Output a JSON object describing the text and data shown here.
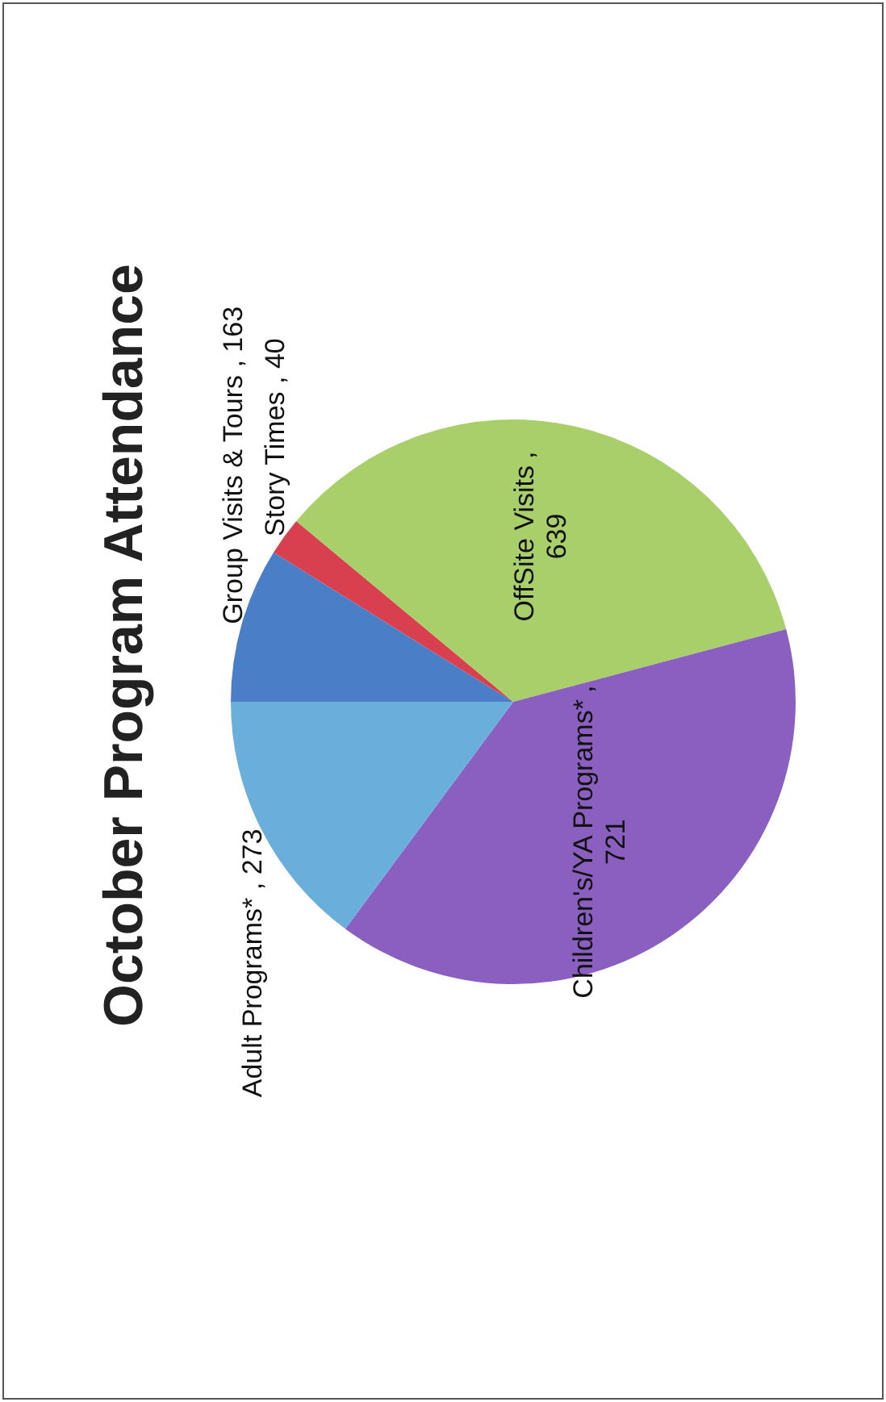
{
  "chart_data": {
    "type": "pie",
    "title": "October Program Attendance",
    "categories": [
      "Group Visits & Tours",
      "Story Times",
      "OffSite Visits",
      "Children's/YA Programs*",
      "Adult Programs*"
    ],
    "values": [
      163,
      40,
      639,
      721,
      273
    ],
    "colors": [
      "#4a7fc8",
      "#d9404f",
      "#a8cf6a",
      "#8a5fbf",
      "#6aaedc"
    ],
    "value_labels": [
      ", 163",
      ", 40",
      ", 639",
      ", 721",
      ", 273"
    ]
  }
}
